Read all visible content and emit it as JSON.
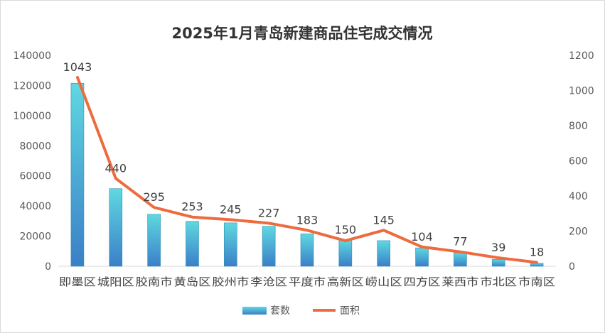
{
  "chart_data": {
    "type": "bar+line",
    "title": "2025年1月青岛新建商品住宅成交情况",
    "categories": [
      "即墨区",
      "城阳区",
      "胶南市",
      "黄岛区",
      "胶州市",
      "李沧区",
      "平度市",
      "高新区",
      "崂山区",
      "四方区",
      "莱西市",
      "市北区",
      "市南区"
    ],
    "series": [
      {
        "name": "套数",
        "type": "bar",
        "axis": "left",
        "values": [
          121500,
          51500,
          34500,
          29800,
          28800,
          26500,
          21500,
          17500,
          17000,
          12200,
          9000,
          4500,
          2000
        ]
      },
      {
        "name": "面积",
        "type": "line",
        "axis": "right",
        "values": [
          1075,
          500,
          335,
          280,
          265,
          245,
          205,
          145,
          205,
          110,
          82,
          48,
          22
        ]
      }
    ],
    "data_labels": [
      "1043",
      "440",
      "295",
      "253",
      "245",
      "227",
      "183",
      "150",
      "145",
      "104",
      "77",
      "39",
      "18"
    ],
    "y_left": {
      "min": 0,
      "max": 140000,
      "ticks": [
        "0",
        "20000",
        "40000",
        "60000",
        "80000",
        "100000",
        "120000",
        "140000"
      ]
    },
    "y_right": {
      "min": 0,
      "max": 1200,
      "ticks": [
        "0",
        "200",
        "400",
        "600",
        "800",
        "1000",
        "1200"
      ]
    },
    "grid": false,
    "legend_position": "bottom",
    "colors": {
      "bar_top": "#5fd8e0",
      "bar_bottom": "#3a7fc8",
      "bar_edge": "#2f8fb0",
      "line": "#ed6b3f",
      "text": "#595959",
      "title": "#333333",
      "label": "#404040"
    }
  }
}
